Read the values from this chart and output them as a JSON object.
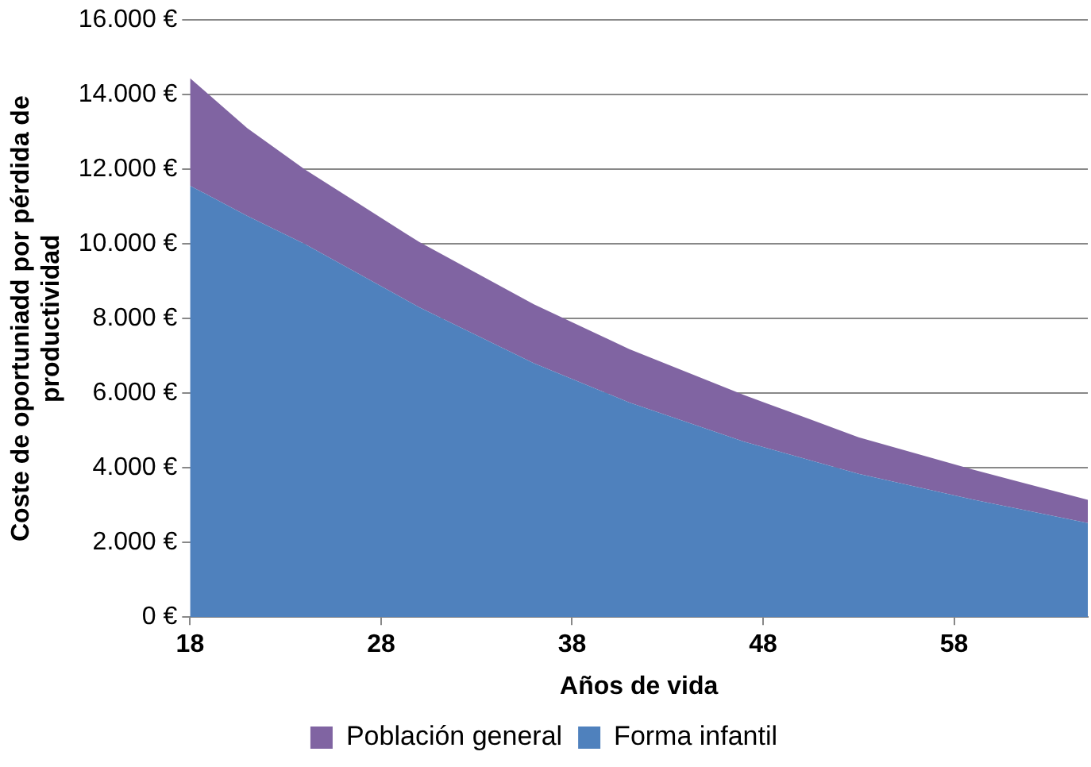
{
  "chart_data": {
    "type": "area",
    "stacked": true,
    "xlabel": "Años de vida",
    "ylabel": "Coste de oportuniadd por pérdida de productividad",
    "x": [
      18,
      21,
      24,
      30,
      36,
      41,
      47,
      53,
      59,
      65
    ],
    "series": [
      {
        "name": "Forma infantil",
        "color": "#4f81bd",
        "values": [
          11560,
          10750,
          10000,
          8300,
          6800,
          5750,
          4700,
          3840,
          3150,
          2520
        ]
      },
      {
        "name": "Población general",
        "color": "#8064a2",
        "values": [
          2880,
          2350,
          2000,
          1750,
          1580,
          1430,
          1250,
          980,
          800,
          620
        ]
      }
    ],
    "xlim": [
      18,
      65
    ],
    "xticks": [
      18,
      28,
      38,
      48,
      58
    ],
    "ylim": [
      0,
      16000
    ],
    "yticks": [
      {
        "value": 0,
        "label": "0 €"
      },
      {
        "value": 2000,
        "label": "2.000 €"
      },
      {
        "value": 4000,
        "label": "4.000 €"
      },
      {
        "value": 6000,
        "label": "6.000 €"
      },
      {
        "value": 8000,
        "label": "8.000 €"
      },
      {
        "value": 10000,
        "label": "10.000 €"
      },
      {
        "value": 12000,
        "label": "12.000 €"
      },
      {
        "value": 14000,
        "label": "14.000 €"
      },
      {
        "value": 16000,
        "label": "16.000 €"
      }
    ],
    "grid": "y",
    "legend": "bottom"
  }
}
